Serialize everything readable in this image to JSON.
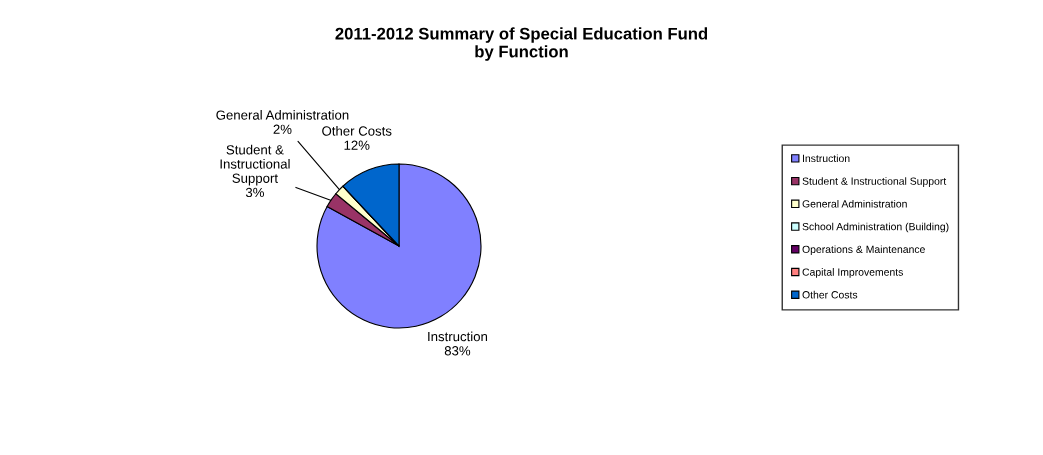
{
  "chart_data": {
    "type": "pie",
    "title": "2011-2012 Summary of Special Education Fund\nby Function",
    "categories": [
      "Instruction",
      "Student & Instructional Support",
      "General Administration",
      "School Administration (Building)",
      "Operations & Maintenance",
      "Capital Improvements",
      "Other Costs"
    ],
    "values": [
      83,
      3,
      2,
      0,
      0,
      0,
      12
    ],
    "colors": [
      "#8080ff",
      "#993366",
      "#ffffcc",
      "#ccffff",
      "#660066",
      "#ff8080",
      "#0066cc"
    ],
    "value_labels": [
      "83%",
      "3%",
      "2%",
      null,
      null,
      null,
      "12%"
    ],
    "legend": "right"
  }
}
